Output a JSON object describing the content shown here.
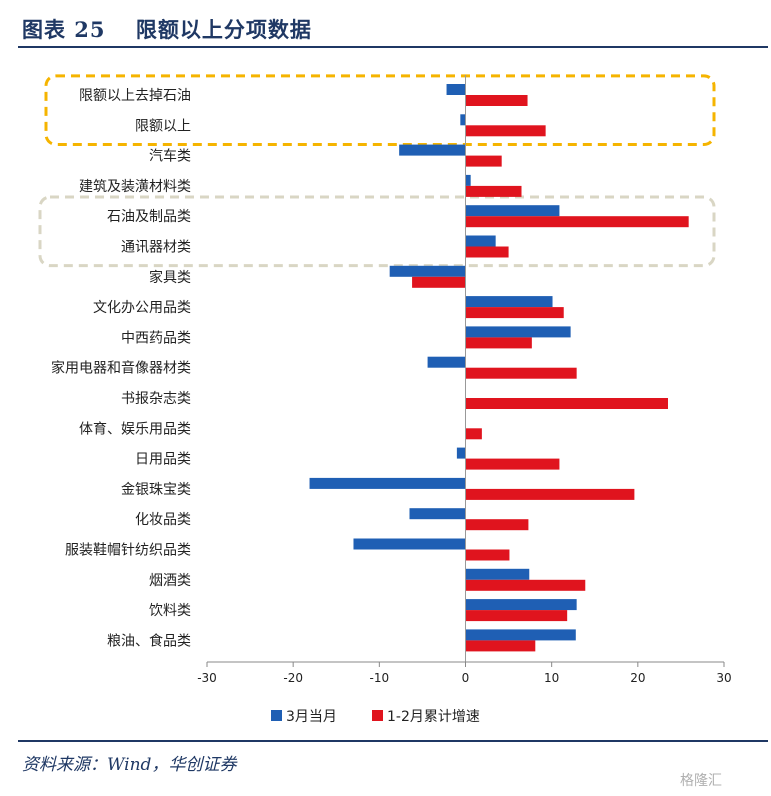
{
  "header": {
    "title": "图表 25　 限额以上分项数据"
  },
  "footer": {
    "source": "资料来源：Wind，华创证券",
    "watermark": "格隆汇"
  },
  "colors": {
    "series1": "#1f5fb4",
    "series2": "#e0141e",
    "highlight1": "#f5b400",
    "highlight2": "#d9d6c4"
  },
  "chart_data": {
    "type": "bar",
    "orientation": "horizontal",
    "categories": [
      "限额以上去掉石油",
      "限额以上",
      "汽车类",
      "建筑及装潢材料类",
      "石油及制品类",
      "通讯器材类",
      "家具类",
      "文化办公用品类",
      "中西药品类",
      "家用电器和音像器材类",
      "书报杂志类",
      "体育、娱乐用品类",
      "日用品类",
      "金银珠宝类",
      "化妆品类",
      "服装鞋帽针纺织品类",
      "烟酒类",
      "饮料类",
      "粮油、食品类"
    ],
    "series": [
      {
        "name": "3月当月",
        "values": [
          -2.2,
          -0.6,
          -7.7,
          0.6,
          10.9,
          3.5,
          -8.8,
          10.1,
          12.2,
          -4.4,
          0.0,
          0.0,
          -1.0,
          -18.1,
          -6.5,
          -13.0,
          7.4,
          12.9,
          12.8
        ]
      },
      {
        "name": "1-2月累计增速",
        "values": [
          7.2,
          9.3,
          4.2,
          6.5,
          25.9,
          5.0,
          -6.2,
          11.4,
          7.7,
          12.9,
          23.5,
          1.9,
          10.9,
          19.6,
          7.3,
          5.1,
          13.9,
          11.8,
          8.1
        ]
      }
    ],
    "xlim": [
      -30,
      30
    ],
    "xticks": [
      -30,
      -20,
      -10,
      0,
      10,
      20,
      30
    ],
    "xtick_labels": [
      "-30",
      "-20",
      "-10",
      "0",
      "10",
      "20",
      "30"
    ],
    "legend_position": "bottom",
    "annotations": [
      {
        "type": "dashed-box",
        "color": "#f5b400",
        "categories": [
          "限额以上去掉石油",
          "限额以上"
        ]
      },
      {
        "type": "dashed-box",
        "color": "#d9d6c4",
        "categories": [
          "石油及制品类",
          "通讯器材类"
        ]
      }
    ]
  }
}
